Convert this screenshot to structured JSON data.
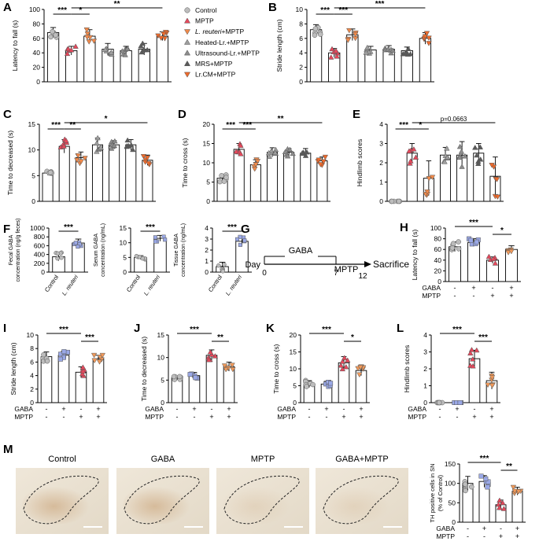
{
  "colors": {
    "control": "#bdbdbd",
    "mptp": "#e5485b",
    "lreuteri_mptp": "#f08a4b",
    "heated_mptp": "#9e9e9e",
    "ultrasound_mptp": "#8c8c8c",
    "mrs_mptp": "#5a5a5a",
    "lrcm_mptp": "#ee6a2b",
    "gaba": "#9aa8e6",
    "gaba_mptp": "#f0995a"
  },
  "legend": {
    "items": [
      {
        "label": "Control",
        "marker": "circle",
        "color": "#bdbdbd"
      },
      {
        "label": "MPTP",
        "marker": "triangle-up",
        "color": "#e5485b"
      },
      {
        "label": "L. reuteri+MPTP",
        "marker": "triangle-down",
        "color": "#f08a4b",
        "italic_prefix": "L. reuteri",
        "suffix": "+MPTP"
      },
      {
        "label": "Heated-Lr.+MPTP",
        "marker": "triangle-up",
        "color": "#9e9e9e"
      },
      {
        "label": "Ultrasound-Lr.+MPTP",
        "marker": "triangle-up",
        "color": "#8c8c8c"
      },
      {
        "label": "MRS+MPTP",
        "marker": "triangle-up",
        "color": "#5a5a5a"
      },
      {
        "label": "Lr.CM+MPTP",
        "marker": "triangle-down",
        "color": "#ee6a2b"
      }
    ]
  },
  "chart_data": [
    {
      "panel": "A",
      "type": "bar",
      "ylabel": "Latency to fall (s)",
      "ylim": [
        0,
        100
      ],
      "yticks": [
        0,
        20,
        40,
        60,
        80,
        100
      ],
      "categories": [
        "Control",
        "MPTP",
        "L. reuteri+MPTP",
        "Heated-Lr.+MPTP",
        "Ultrasound-Lr.+MPTP",
        "MRS+MPTP",
        "Lr.CM+MPTP"
      ],
      "values": [
        68,
        43,
        63,
        45,
        43,
        45,
        63
      ],
      "errors": [
        7,
        6,
        9,
        8,
        6,
        8,
        6
      ],
      "significance": [
        {
          "from": 0,
          "to": 1,
          "label": "***"
        },
        {
          "from": 1,
          "to": 2,
          "label": "*"
        },
        {
          "from": 1,
          "to": 6,
          "label": "**"
        }
      ]
    },
    {
      "panel": "B",
      "type": "bar",
      "ylabel": "Stride length (cm)",
      "ylim": [
        0,
        10
      ],
      "yticks": [
        0,
        2,
        4,
        6,
        8,
        10
      ],
      "categories": [
        "Control",
        "MPTP",
        "L. reuteri+MPTP",
        "Heated-Lr.+MPTP",
        "Ultrasound-Lr.+MPTP",
        "MRS+MPTP",
        "Lr.CM+MPTP"
      ],
      "values": [
        7.2,
        4.0,
        6.5,
        4.4,
        4.5,
        4.3,
        6.0
      ],
      "errors": [
        0.7,
        0.6,
        0.8,
        0.5,
        0.5,
        0.5,
        0.8
      ],
      "significance": [
        {
          "from": 0,
          "to": 1,
          "label": "***"
        },
        {
          "from": 1,
          "to": 2,
          "label": "***"
        },
        {
          "from": 1,
          "to": 6,
          "label": "***"
        }
      ]
    },
    {
      "panel": "C",
      "type": "bar",
      "ylabel": "Time to decreased (s)",
      "ylim": [
        0,
        15
      ],
      "yticks": [
        0,
        5,
        10,
        15
      ],
      "categories": [
        "Control",
        "MPTP",
        "L. reuteri+MPTP",
        "Heated-Lr.+MPTP",
        "Ultrasound-Lr.+MPTP",
        "MRS+MPTP",
        "Lr.CM+MPTP"
      ],
      "values": [
        5.5,
        10.7,
        8.5,
        11.0,
        11.0,
        11.0,
        8.0
      ],
      "errors": [
        0.4,
        1.3,
        1.1,
        1.3,
        0.8,
        1.0,
        1.0
      ],
      "significance": [
        {
          "from": 0,
          "to": 1,
          "label": "***"
        },
        {
          "from": 1,
          "to": 2,
          "label": "**"
        },
        {
          "from": 1,
          "to": 6,
          "label": "*"
        }
      ]
    },
    {
      "panel": "D",
      "type": "bar",
      "ylabel": "Time to cross (s)",
      "ylim": [
        0,
        20
      ],
      "yticks": [
        0,
        5,
        10,
        15,
        20
      ],
      "categories": [
        "Control",
        "MPTP",
        "L. reuteri+MPTP",
        "Heated-Lr.+MPTP",
        "Ultrasound-Lr.+MPTP",
        "MRS+MPTP",
        "Lr.CM+MPTP"
      ],
      "values": [
        6.0,
        13.5,
        9.5,
        12.7,
        12.7,
        12.5,
        10.5
      ],
      "errors": [
        1.0,
        1.5,
        1.3,
        1.2,
        1.0,
        1.2,
        1.0
      ],
      "significance": [
        {
          "from": 0,
          "to": 1,
          "label": "***"
        },
        {
          "from": 1,
          "to": 2,
          "label": "***"
        },
        {
          "from": 1,
          "to": 6,
          "label": "**"
        }
      ]
    },
    {
      "panel": "E",
      "type": "bar",
      "ylabel": "Hindlimb scores",
      "ylim": [
        0,
        4
      ],
      "yticks": [
        0,
        1,
        2,
        3,
        4
      ],
      "categories": [
        "Control",
        "MPTP",
        "L. reuteri+MPTP",
        "Heated-Lr.+MPTP",
        "Ultrasound-Lr.+MPTP",
        "MRS+MPTP",
        "Lr.CM+MPTP"
      ],
      "values": [
        0,
        2.5,
        1.2,
        2.4,
        2.4,
        2.5,
        1.3
      ],
      "errors": [
        0,
        0.5,
        0.9,
        0.4,
        0.7,
        0.5,
        1.0
      ],
      "significance": [
        {
          "from": 0,
          "to": 1,
          "label": "***"
        },
        {
          "from": 1,
          "to": 2,
          "label": "*"
        },
        {
          "from": 1,
          "to": 6,
          "label": "p=0.0663"
        }
      ]
    },
    {
      "panel": "F1",
      "type": "bar",
      "ylabel": "Fecal GABA concentration (ng/g feces)",
      "ylim": [
        0,
        1000
      ],
      "yticks": [
        0,
        200,
        400,
        600,
        800,
        1000
      ],
      "categories": [
        "Control",
        "L. reuteri"
      ],
      "values": [
        350,
        660
      ],
      "errors": [
        90,
        90
      ],
      "significance": [
        {
          "from": 0,
          "to": 1,
          "label": "***"
        }
      ]
    },
    {
      "panel": "F2",
      "type": "bar",
      "ylabel": "Serum GABA concentration (ng/mL)",
      "ylim": [
        0,
        15
      ],
      "yticks": [
        0,
        5,
        10,
        15
      ],
      "categories": [
        "Control",
        "L. reuteri"
      ],
      "values": [
        5.0,
        11.5
      ],
      "errors": [
        0.6,
        1.0
      ],
      "significance": [
        {
          "from": 0,
          "to": 1,
          "label": "***"
        }
      ]
    },
    {
      "panel": "F3",
      "type": "bar",
      "ylabel": "Tissue GABA concentration (ng/mL)",
      "ylim": [
        0,
        4
      ],
      "yticks": [
        0,
        1,
        2,
        3,
        4
      ],
      "categories": [
        "Control",
        "L. reuteri"
      ],
      "values": [
        0.5,
        2.8
      ],
      "errors": [
        0.4,
        0.4
      ],
      "significance": [
        {
          "from": 0,
          "to": 1,
          "label": "***"
        }
      ]
    },
    {
      "panel": "H",
      "type": "bar",
      "ylabel": "Latency to fall (s)",
      "ylim": [
        0,
        100
      ],
      "yticks": [
        0,
        20,
        40,
        60,
        80,
        100
      ],
      "categories": [
        "Control",
        "GABA",
        "MPTP",
        "GABA+MPTP"
      ],
      "values": [
        65,
        73,
        40,
        60
      ],
      "errors": [
        9,
        7,
        6,
        7
      ],
      "significance": [
        {
          "from": 0,
          "to": 2,
          "label": "***"
        },
        {
          "from": 2,
          "to": 3,
          "label": "*"
        }
      ]
    },
    {
      "panel": "I",
      "type": "bar",
      "ylabel": "Stride length (cm)",
      "ylim": [
        0,
        10
      ],
      "yticks": [
        0,
        2,
        4,
        6,
        8,
        10
      ],
      "categories": [
        "Control",
        "GABA",
        "MPTP",
        "GABA+MPTP"
      ],
      "values": [
        6.8,
        7.0,
        4.5,
        6.5
      ],
      "errors": [
        0.7,
        0.6,
        0.8,
        0.5
      ],
      "significance": [
        {
          "from": 0,
          "to": 2,
          "label": "***"
        },
        {
          "from": 2,
          "to": 3,
          "label": "***"
        }
      ]
    },
    {
      "panel": "J",
      "type": "bar",
      "ylabel": "Time to decreased (s)",
      "ylim": [
        0,
        15
      ],
      "yticks": [
        0,
        5,
        10,
        15
      ],
      "categories": [
        "Control",
        "GABA",
        "MPTP",
        "GABA+MPTP"
      ],
      "values": [
        5.5,
        6.0,
        10.5,
        8.0
      ],
      "errors": [
        0.4,
        0.7,
        1.2,
        1.0
      ],
      "significance": [
        {
          "from": 0,
          "to": 2,
          "label": "***"
        },
        {
          "from": 2,
          "to": 3,
          "label": "**"
        }
      ]
    },
    {
      "panel": "K",
      "type": "bar",
      "ylabel": "Time to cross (s)",
      "ylim": [
        0,
        20
      ],
      "yticks": [
        0,
        5,
        10,
        15,
        20
      ],
      "categories": [
        "Control",
        "GABA",
        "MPTP",
        "GABA+MPTP"
      ],
      "values": [
        5.5,
        5.5,
        11.8,
        9.5
      ],
      "errors": [
        1.0,
        0.8,
        1.8,
        1.5
      ],
      "significance": [
        {
          "from": 0,
          "to": 2,
          "label": "***"
        },
        {
          "from": 2,
          "to": 3,
          "label": "*"
        }
      ]
    },
    {
      "panel": "L",
      "type": "bar",
      "ylabel": "Hindlimb scores",
      "ylim": [
        0,
        4
      ],
      "yticks": [
        0,
        1,
        2,
        3,
        4
      ],
      "categories": [
        "Control",
        "GABA",
        "MPTP",
        "GABA+MPTP"
      ],
      "values": [
        0,
        0,
        2.6,
        1.3
      ],
      "errors": [
        0,
        0,
        0.5,
        0.5
      ],
      "significance": [
        {
          "from": 0,
          "to": 2,
          "label": "***"
        },
        {
          "from": 2,
          "to": 3,
          "label": "***"
        }
      ]
    },
    {
      "panel": "M-chart",
      "type": "bar",
      "ylabel": "TH positive cells in SN (% of Control)",
      "ylim": [
        0,
        150
      ],
      "yticks": [
        0,
        50,
        100,
        150
      ],
      "categories": [
        "Control",
        "GABA",
        "MPTP",
        "GABA+MPTP"
      ],
      "values": [
        100,
        105,
        45,
        80
      ],
      "errors": [
        18,
        15,
        12,
        10
      ],
      "significance": [
        {
          "from": 0,
          "to": 2,
          "label": "***"
        },
        {
          "from": 2,
          "to": 3,
          "label": "**"
        }
      ]
    }
  ],
  "treatment_rows": {
    "gaba_label": "GABA",
    "mptp_label": "MPTP",
    "gaba": [
      "-",
      "+",
      "-",
      "+"
    ],
    "mptp": [
      "-",
      "-",
      "+",
      "+"
    ]
  },
  "f_xlabels": [
    "Control",
    "L. reuteri"
  ],
  "timeline": {
    "letter": "G",
    "gaba_label": "GABA",
    "mptp_label": "MPTP",
    "day_label": "Day",
    "day0": "0",
    "day7": "7",
    "day12": "12",
    "sacrifice_label": "Sacrifice"
  },
  "micrographs": {
    "letter": "M",
    "titles": [
      "Control",
      "GABA",
      "MPTP",
      "GABA+MPTP"
    ]
  }
}
